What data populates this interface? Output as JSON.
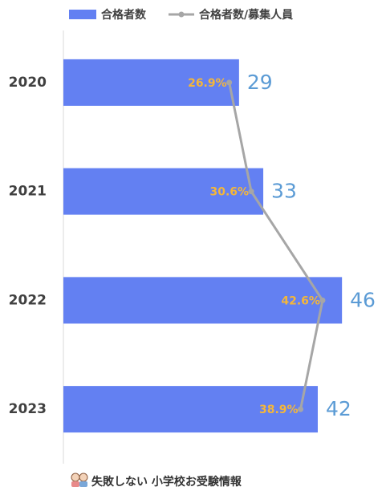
{
  "chart_data": {
    "type": "bar",
    "orientation": "horizontal",
    "categories": [
      "2020",
      "2021",
      "2022",
      "2023"
    ],
    "series": [
      {
        "name": "合格者数",
        "type": "bar",
        "color": "#6380f2",
        "label_color": "#5b9bd5",
        "values": [
          29,
          33,
          46,
          42
        ]
      },
      {
        "name": "合格者数/募集人員",
        "type": "line",
        "axis": "x2",
        "color": "#a6a6a6",
        "label_color": "#f4b63a",
        "values": [
          26.9,
          30.6,
          42.6,
          38.9
        ],
        "value_labels": [
          "26.9%",
          "30.6%",
          "42.6%",
          "38.9%"
        ]
      }
    ],
    "xlim": [
      0,
      53
    ],
    "x2lim": [
      -1,
      53
    ],
    "legend": "top"
  },
  "footer": {
    "text": "失敗しない 小学校お受験情報"
  }
}
